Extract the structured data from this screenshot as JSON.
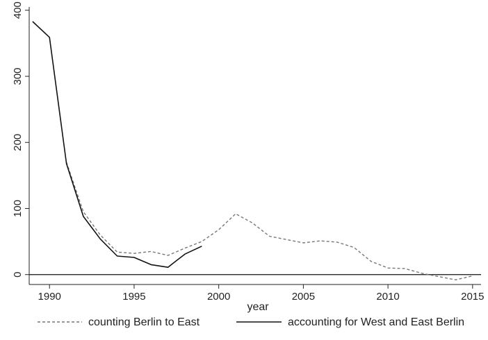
{
  "chart_data": {
    "type": "line",
    "title": "",
    "xlabel": "year",
    "ylabel": "",
    "xlim": [
      1988.8,
      2015.5
    ],
    "ylim": [
      -15,
      405
    ],
    "x_ticks": [
      "1990",
      "1995",
      "2000",
      "2005",
      "2010",
      "2015"
    ],
    "y_ticks": [
      "0",
      "100",
      "200",
      "300",
      "400"
    ],
    "grid": false,
    "legend_position": "bottom",
    "zero_reference_line": true,
    "series": [
      {
        "name": "counting Berlin to East",
        "style": "dashed",
        "color": "#777777",
        "x": [
          1991,
          1992,
          1993,
          1994,
          1995,
          1996,
          1997,
          1998,
          1999,
          2000,
          2001,
          2002,
          2003,
          2004,
          2005,
          2006,
          2007,
          2008,
          2009,
          2010,
          2011,
          2012,
          2013,
          2014,
          2015
        ],
        "y": [
          170,
          95,
          60,
          34,
          32,
          35,
          29,
          40,
          50,
          68,
          92,
          78,
          58,
          53,
          48,
          51,
          49,
          41,
          20,
          10,
          9,
          2,
          -3,
          -8,
          -2
        ]
      },
      {
        "name": "accounting for West and East Berlin",
        "style": "solid",
        "color": "#111111",
        "x": [
          1989,
          1990,
          1991,
          1992,
          1993,
          1994,
          1995,
          1996,
          1997,
          1998,
          1999
        ],
        "y": [
          383,
          359,
          168,
          88,
          54,
          28,
          26,
          15,
          11,
          31,
          43
        ]
      }
    ]
  }
}
